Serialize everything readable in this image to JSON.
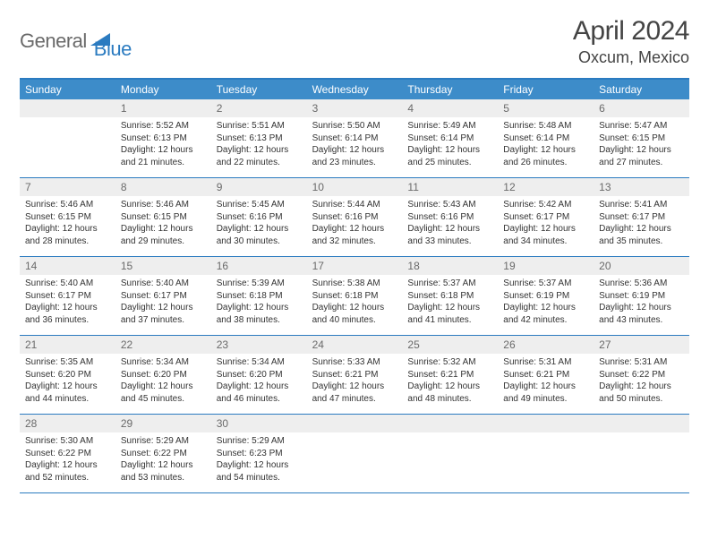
{
  "brand": {
    "part1": "General",
    "part2": "Blue"
  },
  "title": "April 2024",
  "location": "Oxcum, Mexico",
  "colors": {
    "header_bg": "#3d8cc9",
    "header_border": "#2b7bc0",
    "daynum_bg": "#eeeeee",
    "text_primary": "#333333",
    "text_muted": "#6a6a6a",
    "brand_blue": "#2b7bc0"
  },
  "dow": [
    "Sunday",
    "Monday",
    "Tuesday",
    "Wednesday",
    "Thursday",
    "Friday",
    "Saturday"
  ],
  "weeks": [
    [
      null,
      {
        "n": "1",
        "sunrise": "Sunrise: 5:52 AM",
        "sunset": "Sunset: 6:13 PM",
        "daylight": "Daylight: 12 hours and 21 minutes."
      },
      {
        "n": "2",
        "sunrise": "Sunrise: 5:51 AM",
        "sunset": "Sunset: 6:13 PM",
        "daylight": "Daylight: 12 hours and 22 minutes."
      },
      {
        "n": "3",
        "sunrise": "Sunrise: 5:50 AM",
        "sunset": "Sunset: 6:14 PM",
        "daylight": "Daylight: 12 hours and 23 minutes."
      },
      {
        "n": "4",
        "sunrise": "Sunrise: 5:49 AM",
        "sunset": "Sunset: 6:14 PM",
        "daylight": "Daylight: 12 hours and 25 minutes."
      },
      {
        "n": "5",
        "sunrise": "Sunrise: 5:48 AM",
        "sunset": "Sunset: 6:14 PM",
        "daylight": "Daylight: 12 hours and 26 minutes."
      },
      {
        "n": "6",
        "sunrise": "Sunrise: 5:47 AM",
        "sunset": "Sunset: 6:15 PM",
        "daylight": "Daylight: 12 hours and 27 minutes."
      }
    ],
    [
      {
        "n": "7",
        "sunrise": "Sunrise: 5:46 AM",
        "sunset": "Sunset: 6:15 PM",
        "daylight": "Daylight: 12 hours and 28 minutes."
      },
      {
        "n": "8",
        "sunrise": "Sunrise: 5:46 AM",
        "sunset": "Sunset: 6:15 PM",
        "daylight": "Daylight: 12 hours and 29 minutes."
      },
      {
        "n": "9",
        "sunrise": "Sunrise: 5:45 AM",
        "sunset": "Sunset: 6:16 PM",
        "daylight": "Daylight: 12 hours and 30 minutes."
      },
      {
        "n": "10",
        "sunrise": "Sunrise: 5:44 AM",
        "sunset": "Sunset: 6:16 PM",
        "daylight": "Daylight: 12 hours and 32 minutes."
      },
      {
        "n": "11",
        "sunrise": "Sunrise: 5:43 AM",
        "sunset": "Sunset: 6:16 PM",
        "daylight": "Daylight: 12 hours and 33 minutes."
      },
      {
        "n": "12",
        "sunrise": "Sunrise: 5:42 AM",
        "sunset": "Sunset: 6:17 PM",
        "daylight": "Daylight: 12 hours and 34 minutes."
      },
      {
        "n": "13",
        "sunrise": "Sunrise: 5:41 AM",
        "sunset": "Sunset: 6:17 PM",
        "daylight": "Daylight: 12 hours and 35 minutes."
      }
    ],
    [
      {
        "n": "14",
        "sunrise": "Sunrise: 5:40 AM",
        "sunset": "Sunset: 6:17 PM",
        "daylight": "Daylight: 12 hours and 36 minutes."
      },
      {
        "n": "15",
        "sunrise": "Sunrise: 5:40 AM",
        "sunset": "Sunset: 6:17 PM",
        "daylight": "Daylight: 12 hours and 37 minutes."
      },
      {
        "n": "16",
        "sunrise": "Sunrise: 5:39 AM",
        "sunset": "Sunset: 6:18 PM",
        "daylight": "Daylight: 12 hours and 38 minutes."
      },
      {
        "n": "17",
        "sunrise": "Sunrise: 5:38 AM",
        "sunset": "Sunset: 6:18 PM",
        "daylight": "Daylight: 12 hours and 40 minutes."
      },
      {
        "n": "18",
        "sunrise": "Sunrise: 5:37 AM",
        "sunset": "Sunset: 6:18 PM",
        "daylight": "Daylight: 12 hours and 41 minutes."
      },
      {
        "n": "19",
        "sunrise": "Sunrise: 5:37 AM",
        "sunset": "Sunset: 6:19 PM",
        "daylight": "Daylight: 12 hours and 42 minutes."
      },
      {
        "n": "20",
        "sunrise": "Sunrise: 5:36 AM",
        "sunset": "Sunset: 6:19 PM",
        "daylight": "Daylight: 12 hours and 43 minutes."
      }
    ],
    [
      {
        "n": "21",
        "sunrise": "Sunrise: 5:35 AM",
        "sunset": "Sunset: 6:20 PM",
        "daylight": "Daylight: 12 hours and 44 minutes."
      },
      {
        "n": "22",
        "sunrise": "Sunrise: 5:34 AM",
        "sunset": "Sunset: 6:20 PM",
        "daylight": "Daylight: 12 hours and 45 minutes."
      },
      {
        "n": "23",
        "sunrise": "Sunrise: 5:34 AM",
        "sunset": "Sunset: 6:20 PM",
        "daylight": "Daylight: 12 hours and 46 minutes."
      },
      {
        "n": "24",
        "sunrise": "Sunrise: 5:33 AM",
        "sunset": "Sunset: 6:21 PM",
        "daylight": "Daylight: 12 hours and 47 minutes."
      },
      {
        "n": "25",
        "sunrise": "Sunrise: 5:32 AM",
        "sunset": "Sunset: 6:21 PM",
        "daylight": "Daylight: 12 hours and 48 minutes."
      },
      {
        "n": "26",
        "sunrise": "Sunrise: 5:31 AM",
        "sunset": "Sunset: 6:21 PM",
        "daylight": "Daylight: 12 hours and 49 minutes."
      },
      {
        "n": "27",
        "sunrise": "Sunrise: 5:31 AM",
        "sunset": "Sunset: 6:22 PM",
        "daylight": "Daylight: 12 hours and 50 minutes."
      }
    ],
    [
      {
        "n": "28",
        "sunrise": "Sunrise: 5:30 AM",
        "sunset": "Sunset: 6:22 PM",
        "daylight": "Daylight: 12 hours and 52 minutes."
      },
      {
        "n": "29",
        "sunrise": "Sunrise: 5:29 AM",
        "sunset": "Sunset: 6:22 PM",
        "daylight": "Daylight: 12 hours and 53 minutes."
      },
      {
        "n": "30",
        "sunrise": "Sunrise: 5:29 AM",
        "sunset": "Sunset: 6:23 PM",
        "daylight": "Daylight: 12 hours and 54 minutes."
      },
      null,
      null,
      null,
      null
    ]
  ]
}
